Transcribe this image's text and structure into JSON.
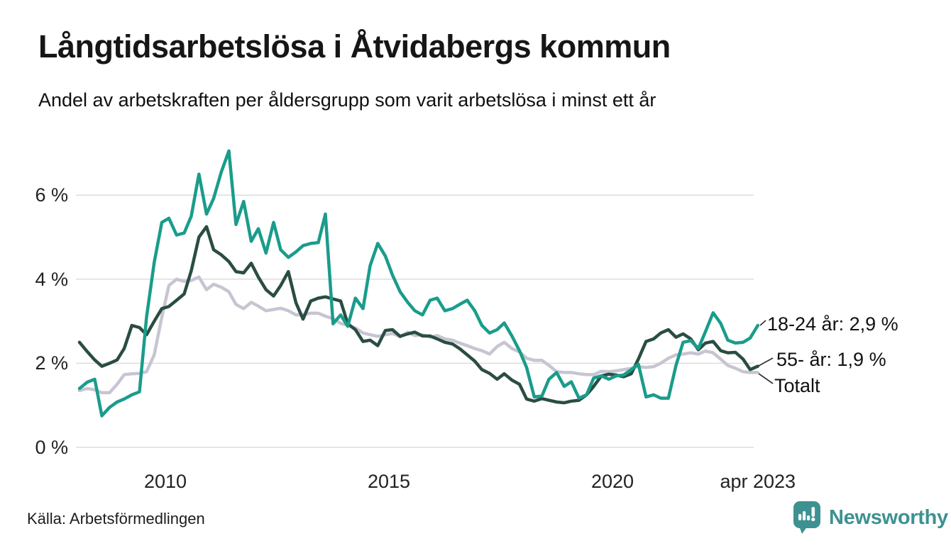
{
  "header": {
    "title": "Långtidsarbetslösa i Åtvidabergs kommun",
    "subtitle": "Andel av arbetskraften per åldersgrupp som varit arbetslösa i minst ett år"
  },
  "footer": {
    "source": "Källa: Arbetsförmedlingen",
    "brand": "Newsworthy"
  },
  "chart_data": {
    "type": "line",
    "title": "Långtidsarbetslösa i Åtvidabergs kommun",
    "subtitle": "Andel av arbetskraften per åldersgrupp som varit arbetslösa i minst ett år",
    "x_unit": "decimal_year",
    "ylim": [
      0,
      7.4
    ],
    "grid": "horizontal",
    "legend_position": "right-end-labels",
    "yticks": [
      "0 %",
      "2 %",
      "4 %",
      "6 %"
    ],
    "ytick_values": [
      0,
      2,
      4,
      6
    ],
    "xticks": [
      {
        "label": "2010",
        "year": 2010
      },
      {
        "label": "2015",
        "year": 2015
      },
      {
        "label": "2020",
        "year": 2020
      },
      {
        "label": "apr 2023",
        "year": 2023.25
      }
    ],
    "x": [
      2008.08,
      2008.25,
      2008.42,
      2008.58,
      2008.75,
      2008.92,
      2009.08,
      2009.25,
      2009.42,
      2009.58,
      2009.75,
      2009.92,
      2010.08,
      2010.25,
      2010.42,
      2010.58,
      2010.75,
      2010.92,
      2011.08,
      2011.25,
      2011.42,
      2011.58,
      2011.75,
      2011.92,
      2012.08,
      2012.25,
      2012.42,
      2012.58,
      2012.75,
      2012.92,
      2013.08,
      2013.25,
      2013.42,
      2013.58,
      2013.75,
      2013.92,
      2014.08,
      2014.25,
      2014.42,
      2014.58,
      2014.75,
      2014.92,
      2015.08,
      2015.25,
      2015.42,
      2015.58,
      2015.75,
      2015.92,
      2016.08,
      2016.25,
      2016.42,
      2016.58,
      2016.75,
      2016.92,
      2017.08,
      2017.25,
      2017.42,
      2017.58,
      2017.75,
      2017.92,
      2018.08,
      2018.25,
      2018.42,
      2018.58,
      2018.75,
      2018.92,
      2019.08,
      2019.25,
      2019.42,
      2019.58,
      2019.75,
      2019.92,
      2020.08,
      2020.25,
      2020.42,
      2020.58,
      2020.75,
      2020.92,
      2021.08,
      2021.25,
      2021.42,
      2021.58,
      2021.75,
      2021.92,
      2022.08,
      2022.25,
      2022.42,
      2022.58,
      2022.75,
      2022.92,
      2023.08,
      2023.25
    ],
    "series": [
      {
        "name": "18-24 år",
        "end_label": "18-24 år: 2,9 %",
        "end_value": "2,9 %",
        "color": "#1a9c8b",
        "values": [
          1.4,
          1.55,
          1.62,
          0.75,
          0.95,
          1.08,
          1.15,
          1.25,
          1.32,
          3.1,
          4.4,
          5.35,
          5.45,
          5.05,
          5.1,
          5.5,
          6.5,
          5.55,
          5.92,
          6.55,
          7.05,
          5.3,
          5.85,
          4.9,
          5.2,
          4.62,
          5.35,
          4.7,
          4.52,
          4.65,
          4.8,
          4.85,
          4.87,
          5.55,
          2.94,
          3.15,
          2.88,
          3.55,
          3.3,
          4.32,
          4.85,
          4.55,
          4.1,
          3.7,
          3.45,
          3.25,
          3.15,
          3.5,
          3.55,
          3.25,
          3.3,
          3.4,
          3.5,
          3.25,
          2.9,
          2.72,
          2.8,
          2.96,
          2.65,
          2.3,
          1.9,
          1.2,
          1.22,
          1.62,
          1.78,
          1.45,
          1.56,
          1.17,
          1.25,
          1.65,
          1.7,
          1.62,
          1.7,
          1.72,
          1.85,
          1.98,
          1.2,
          1.25,
          1.17,
          1.17,
          1.95,
          2.5,
          2.54,
          2.35,
          2.75,
          3.2,
          2.95,
          2.55,
          2.48,
          2.5,
          2.6,
          2.9
        ]
      },
      {
        "name": "55- år",
        "end_label": "55- år: 1,9 %",
        "end_value": "1,9 %",
        "color": "#2a4d42",
        "values": [
          2.5,
          2.28,
          2.08,
          1.93,
          2.0,
          2.08,
          2.35,
          2.9,
          2.85,
          2.68,
          3.0,
          3.3,
          3.35,
          3.5,
          3.65,
          4.2,
          5.0,
          5.25,
          4.7,
          4.58,
          4.42,
          4.18,
          4.15,
          4.38,
          4.05,
          3.75,
          3.6,
          3.85,
          4.18,
          3.44,
          3.05,
          3.48,
          3.55,
          3.58,
          3.53,
          3.48,
          2.94,
          2.8,
          2.52,
          2.55,
          2.42,
          2.78,
          2.8,
          2.64,
          2.7,
          2.74,
          2.65,
          2.65,
          2.58,
          2.5,
          2.46,
          2.35,
          2.2,
          2.05,
          1.85,
          1.76,
          1.62,
          1.75,
          1.6,
          1.5,
          1.15,
          1.1,
          1.16,
          1.12,
          1.08,
          1.06,
          1.1,
          1.12,
          1.25,
          1.45,
          1.7,
          1.74,
          1.72,
          1.68,
          1.75,
          2.1,
          2.52,
          2.58,
          2.72,
          2.8,
          2.62,
          2.7,
          2.58,
          2.32,
          2.48,
          2.52,
          2.3,
          2.25,
          2.26,
          2.1,
          1.85,
          1.93
        ]
      },
      {
        "name": "Totalt",
        "end_label": "Totalt",
        "end_value": "",
        "color": "#c7c5d2",
        "values": [
          1.35,
          1.4,
          1.37,
          1.3,
          1.3,
          1.5,
          1.73,
          1.75,
          1.76,
          1.8,
          2.2,
          3.1,
          3.85,
          4.0,
          3.95,
          3.97,
          4.05,
          3.75,
          3.88,
          3.81,
          3.7,
          3.4,
          3.3,
          3.45,
          3.36,
          3.25,
          3.28,
          3.31,
          3.25,
          3.15,
          3.16,
          3.19,
          3.19,
          3.12,
          3.06,
          2.95,
          2.9,
          2.84,
          2.72,
          2.68,
          2.64,
          2.68,
          2.71,
          2.63,
          2.74,
          2.66,
          2.68,
          2.62,
          2.66,
          2.58,
          2.55,
          2.48,
          2.42,
          2.35,
          2.3,
          2.22,
          2.4,
          2.5,
          2.35,
          2.27,
          2.12,
          2.07,
          2.07,
          1.95,
          1.8,
          1.78,
          1.78,
          1.75,
          1.73,
          1.73,
          1.81,
          1.8,
          1.82,
          1.85,
          1.88,
          1.92,
          1.9,
          1.92,
          2.0,
          2.12,
          2.2,
          2.22,
          2.25,
          2.22,
          2.29,
          2.25,
          2.1,
          1.95,
          1.88,
          1.8,
          1.78,
          1.78
        ]
      }
    ]
  }
}
